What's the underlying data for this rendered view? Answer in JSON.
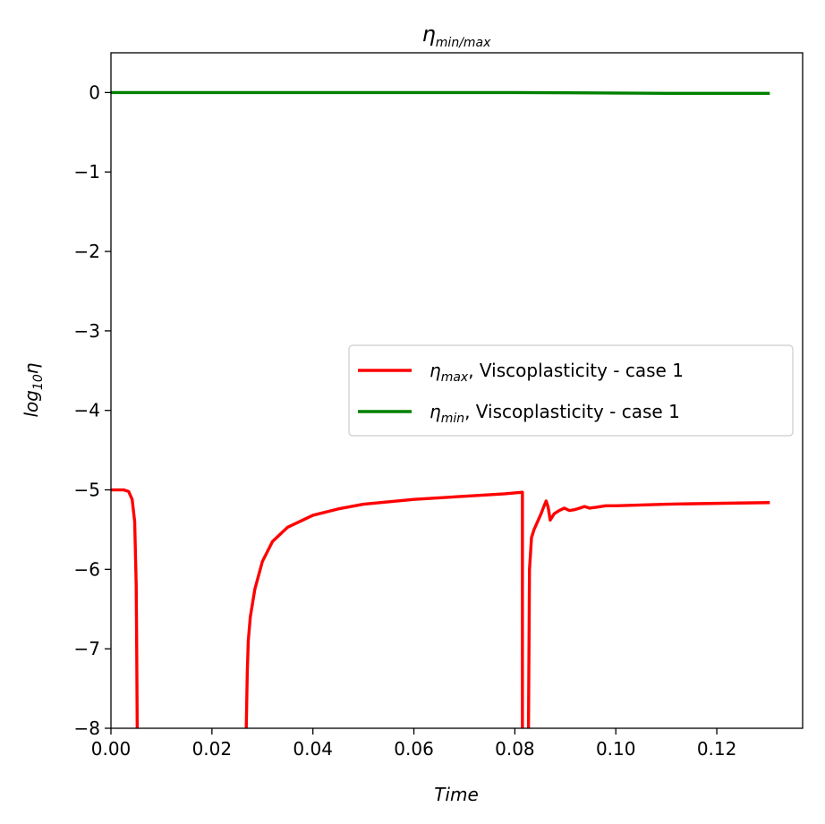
{
  "chart_data": {
    "type": "line",
    "title": {
      "base": "η",
      "sub": "min/max"
    },
    "xlabel": "Time",
    "ylabel": {
      "base": "log",
      "sub": "10",
      "suffix": "η"
    },
    "xlim": [
      0.0,
      0.137
    ],
    "ylim": [
      -8,
      0.5
    ],
    "xticks": [
      0.0,
      0.02,
      0.04,
      0.06,
      0.08,
      0.1,
      0.12
    ],
    "xtick_labels": [
      "0.00",
      "0.02",
      "0.04",
      "0.06",
      "0.08",
      "0.10",
      "0.12"
    ],
    "yticks": [
      0,
      -1,
      -2,
      -3,
      -4,
      -5,
      -6,
      -7,
      -8
    ],
    "ytick_labels": [
      "0",
      "−1",
      "−2",
      "−3",
      "−4",
      "−5",
      "−6",
      "−7",
      "−8"
    ],
    "grid": false,
    "legend": {
      "position": "center-right"
    },
    "series": [
      {
        "name": "ηmax, Viscoplasticity - case 1",
        "legend_symbol": "η",
        "legend_sub": "max",
        "legend_rest": ", Viscoplasticity - case 1",
        "color": "#ff0000",
        "segments": [
          [
            [
              0.0,
              -5.0
            ],
            [
              0.0025,
              -5.0
            ],
            [
              0.0035,
              -5.02
            ],
            [
              0.0042,
              -5.12
            ],
            [
              0.0047,
              -5.4
            ],
            [
              0.005,
              -6.2
            ],
            [
              0.0051,
              -7.0
            ],
            [
              0.0052,
              -8.0
            ]
          ],
          [
            [
              0.0268,
              -8.0
            ],
            [
              0.027,
              -7.3
            ],
            [
              0.0272,
              -6.9
            ],
            [
              0.0276,
              -6.6
            ],
            [
              0.0285,
              -6.25
            ],
            [
              0.03,
              -5.9
            ],
            [
              0.032,
              -5.65
            ],
            [
              0.035,
              -5.47
            ],
            [
              0.04,
              -5.32
            ],
            [
              0.045,
              -5.24
            ],
            [
              0.05,
              -5.18
            ],
            [
              0.06,
              -5.12
            ],
            [
              0.07,
              -5.08
            ],
            [
              0.078,
              -5.05
            ],
            [
              0.0815,
              -5.03
            ],
            [
              0.0815,
              -8.0
            ]
          ],
          [
            [
              0.0827,
              -8.0
            ],
            [
              0.0829,
              -6.0
            ],
            [
              0.0833,
              -5.6
            ],
            [
              0.0838,
              -5.5
            ],
            [
              0.0845,
              -5.4
            ],
            [
              0.0852,
              -5.3
            ],
            [
              0.0858,
              -5.2
            ],
            [
              0.0862,
              -5.14
            ],
            [
              0.0866,
              -5.22
            ],
            [
              0.087,
              -5.38
            ],
            [
              0.0878,
              -5.3
            ],
            [
              0.0888,
              -5.26
            ],
            [
              0.0898,
              -5.23
            ],
            [
              0.0908,
              -5.26
            ],
            [
              0.0918,
              -5.25
            ],
            [
              0.0928,
              -5.23
            ],
            [
              0.0938,
              -5.21
            ],
            [
              0.0948,
              -5.23
            ],
            [
              0.096,
              -5.22
            ],
            [
              0.098,
              -5.2
            ],
            [
              0.1,
              -5.2
            ],
            [
              0.11,
              -5.18
            ],
            [
              0.12,
              -5.17
            ],
            [
              0.1305,
              -5.16
            ]
          ]
        ]
      },
      {
        "name": "ηmin, Viscoplasticity - case 1",
        "legend_symbol": "η",
        "legend_sub": "min",
        "legend_rest": ", Viscoplasticity - case 1",
        "color": "#008000",
        "segments": [
          [
            [
              0.0,
              0.0
            ],
            [
              0.04,
              0.0
            ],
            [
              0.08,
              0.0
            ],
            [
              0.11,
              -0.01
            ],
            [
              0.1305,
              -0.01
            ]
          ]
        ]
      }
    ]
  }
}
